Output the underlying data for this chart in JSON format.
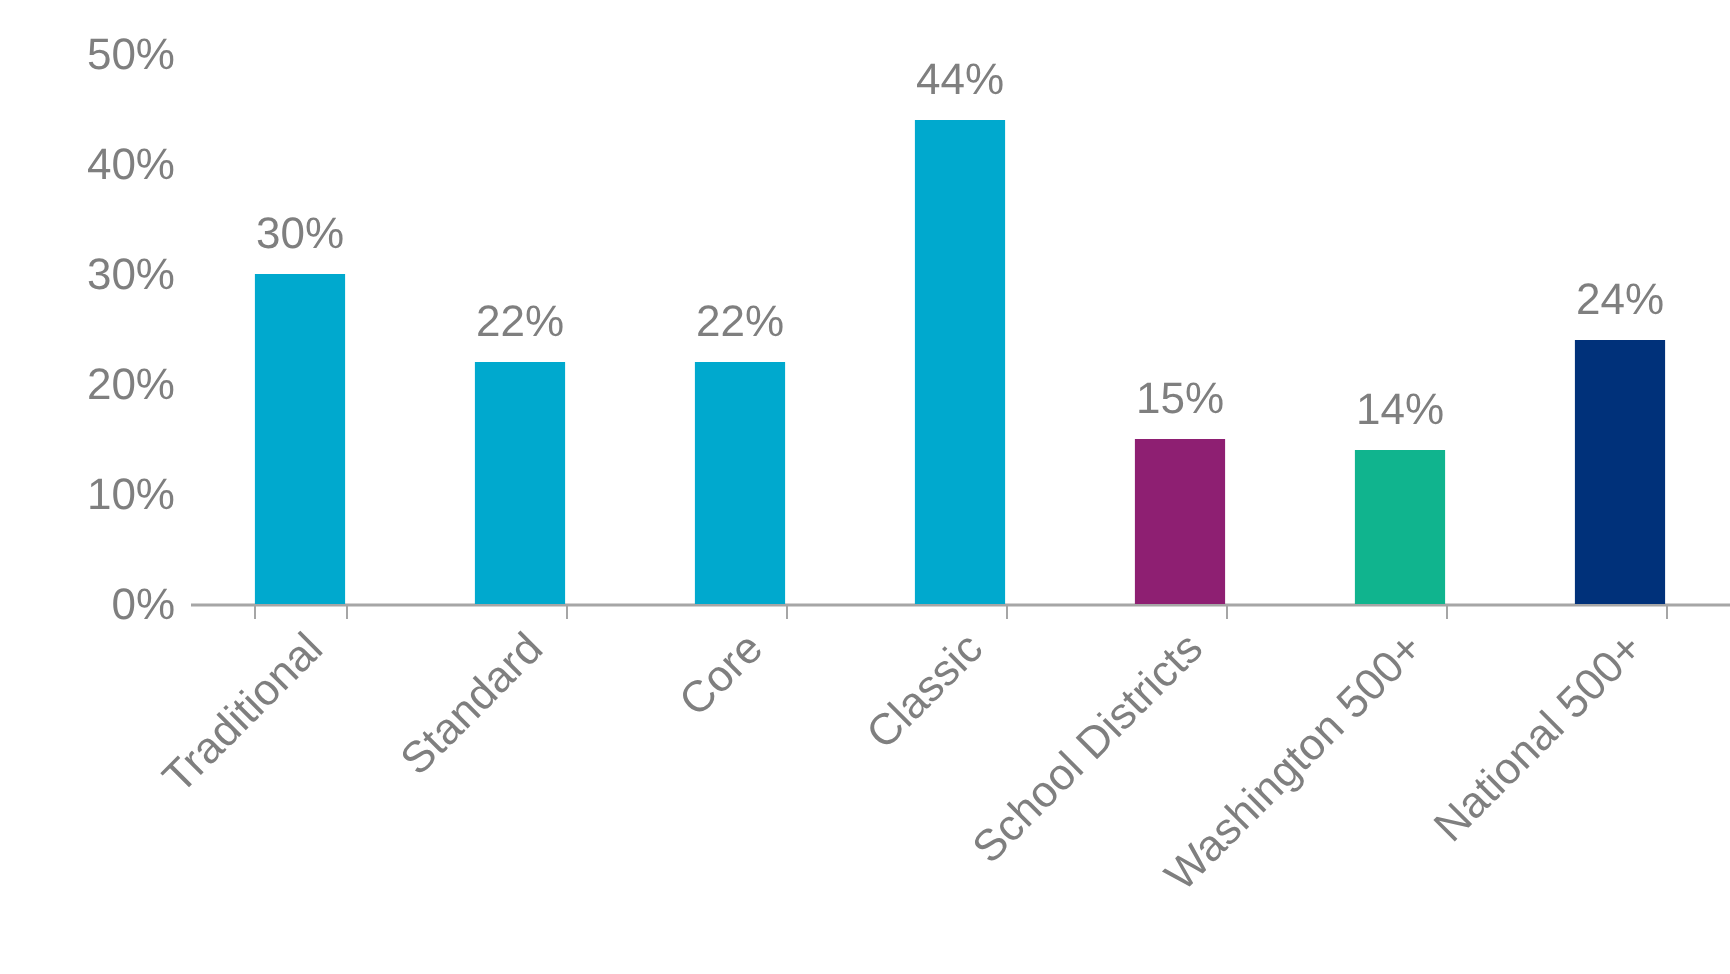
{
  "chart_data": {
    "type": "bar",
    "categories": [
      "Traditional",
      "Standard",
      "Core",
      "Classic",
      "School Districts",
      "Washington 500+",
      "National 500+"
    ],
    "values": [
      30,
      22,
      22,
      44,
      15,
      14,
      24
    ],
    "value_labels": [
      "30%",
      "22%",
      "22%",
      "44%",
      "15%",
      "14%",
      "24%"
    ],
    "colors": [
      "#00a9ce",
      "#00a9ce",
      "#00a9ce",
      "#00a9ce",
      "#8e1f72",
      "#10b48e",
      "#00317a"
    ],
    "ylim": [
      0,
      50
    ],
    "yticks": [
      {
        "value": 0,
        "label": "0%"
      },
      {
        "value": 10,
        "label": "10%"
      },
      {
        "value": 20,
        "label": "20%"
      },
      {
        "value": 30,
        "label": "30%"
      },
      {
        "value": 40,
        "label": "40%"
      },
      {
        "value": 50,
        "label": "50%"
      }
    ],
    "grid": false,
    "legend": false
  }
}
